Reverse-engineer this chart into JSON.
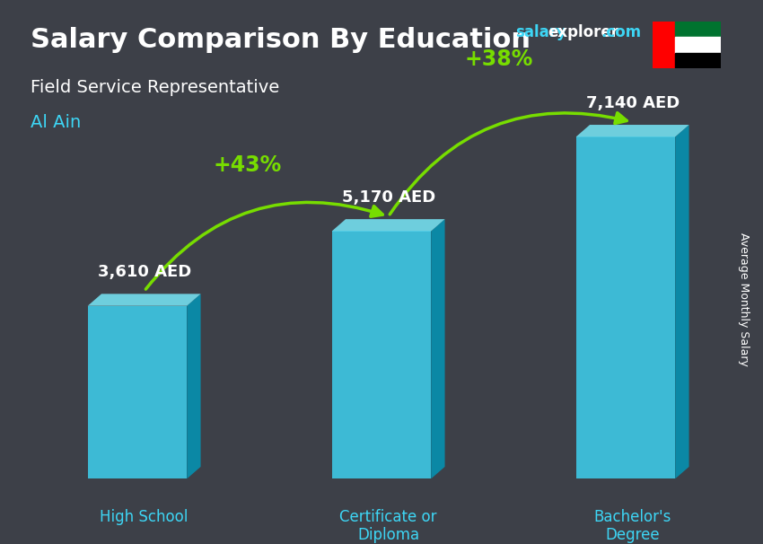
{
  "title": "Salary Comparison By Education",
  "subtitle": "Field Service Representative",
  "city": "Al Ain",
  "ylabel": "Average Monthly Salary",
  "categories": [
    "High School",
    "Certificate or\nDiploma",
    "Bachelor's\nDegree"
  ],
  "values": [
    3610,
    5170,
    7140
  ],
  "value_labels": [
    "3,610 AED",
    "5,170 AED",
    "7,140 AED"
  ],
  "bar_color_face": "#3dd6f5",
  "bar_color_dark": "#0099bb",
  "bar_color_top": "#7aeeff",
  "pct_labels": [
    "+43%",
    "+38%"
  ],
  "pct_color": "#77dd00",
  "title_color": "#ffffff",
  "subtitle_color": "#ffffff",
  "city_color": "#3dd6f5",
  "watermark_color_salary": "#3dd6f5",
  "watermark_color_explorer": "#ffffff",
  "watermark_color_com": "#3dd6f5",
  "label_color": "#ffffff",
  "xlabel_color": "#3dd6f5",
  "ylabel_color": "#ffffff",
  "bg_color": "#3d4048",
  "figsize": [
    8.5,
    6.06
  ],
  "dpi": 100
}
